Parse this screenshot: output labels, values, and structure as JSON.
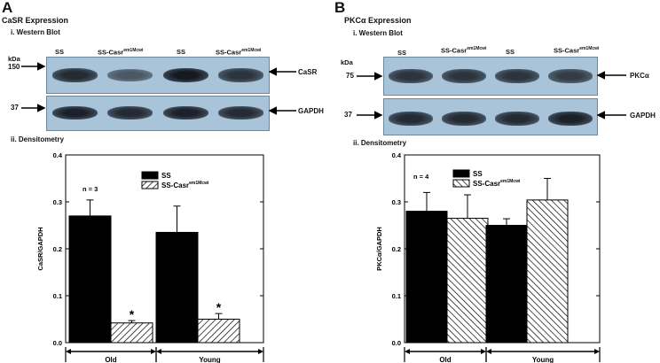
{
  "panels": [
    {
      "letter": "A",
      "title": "CaSR Expression",
      "western_label": "i. Western Blot",
      "densitometry_label": "ii. Densitometry",
      "lanes": [
        "SS",
        "SS-Casr",
        "SS",
        "SS-Casr"
      ],
      "lane_superscript": "em1Mcwi",
      "kda_label": "kDa",
      "blots": [
        {
          "mw": "150",
          "protein": "CaSR",
          "band_strengths": [
            0.85,
            0.6,
            0.95,
            0.8
          ]
        },
        {
          "mw": "37",
          "protein": "GAPDH",
          "band_strengths": [
            0.9,
            0.85,
            0.9,
            0.85
          ]
        }
      ]
    },
    {
      "letter": "B",
      "title": "PKCα Expression",
      "western_label": "i. Western Blot",
      "densitometry_label": "ii. Densitometry",
      "lanes": [
        "SS",
        "SS-Casr",
        "SS",
        "SS-Casr"
      ],
      "lane_superscript": "em1Mcwi",
      "kda_label": "kDa",
      "blots": [
        {
          "mw": "75",
          "protein": "PKCα",
          "band_strengths": [
            0.8,
            0.8,
            0.8,
            0.75
          ]
        },
        {
          "mw": "37",
          "protein": "GAPDH",
          "band_strengths": [
            0.85,
            0.85,
            0.85,
            0.9
          ]
        }
      ]
    }
  ],
  "chart_data": [
    {
      "type": "bar",
      "ylabel": "CaSR/GAPDH",
      "ylim": [
        0,
        0.4
      ],
      "yticks": [
        "0.0",
        "0.1",
        "0.2",
        "0.3",
        "0.4"
      ],
      "annotation": "n = 3",
      "groups": [
        "Old",
        "Young"
      ],
      "series": [
        {
          "name": "SS",
          "values": [
            0.27,
            0.235
          ],
          "errors": [
            0.034,
            0.056
          ],
          "fill": "solid"
        },
        {
          "name": "SS-Casr",
          "superscript": "em1Mcwi",
          "values": [
            0.042,
            0.05
          ],
          "errors": [
            0.005,
            0.012
          ],
          "fill": "hatch",
          "significance": [
            "*",
            "*"
          ]
        }
      ]
    },
    {
      "type": "bar",
      "ylabel": "PKCα/GAPDH",
      "ylim": [
        0,
        0.4
      ],
      "yticks": [
        "0.0",
        "0.1",
        "0.2",
        "0.3",
        "0.4"
      ],
      "annotation": "n = 4",
      "groups": [
        "Old",
        "Young"
      ],
      "series": [
        {
          "name": "SS",
          "values": [
            0.28,
            0.25
          ],
          "errors": [
            0.04,
            0.014
          ],
          "fill": "solid"
        },
        {
          "name": "SS-Casr",
          "superscript": "em1Mcwi",
          "values": [
            0.265,
            0.304
          ],
          "errors": [
            0.05,
            0.046
          ],
          "fill": "hatch",
          "significance": [
            "",
            ""
          ]
        }
      ]
    }
  ]
}
